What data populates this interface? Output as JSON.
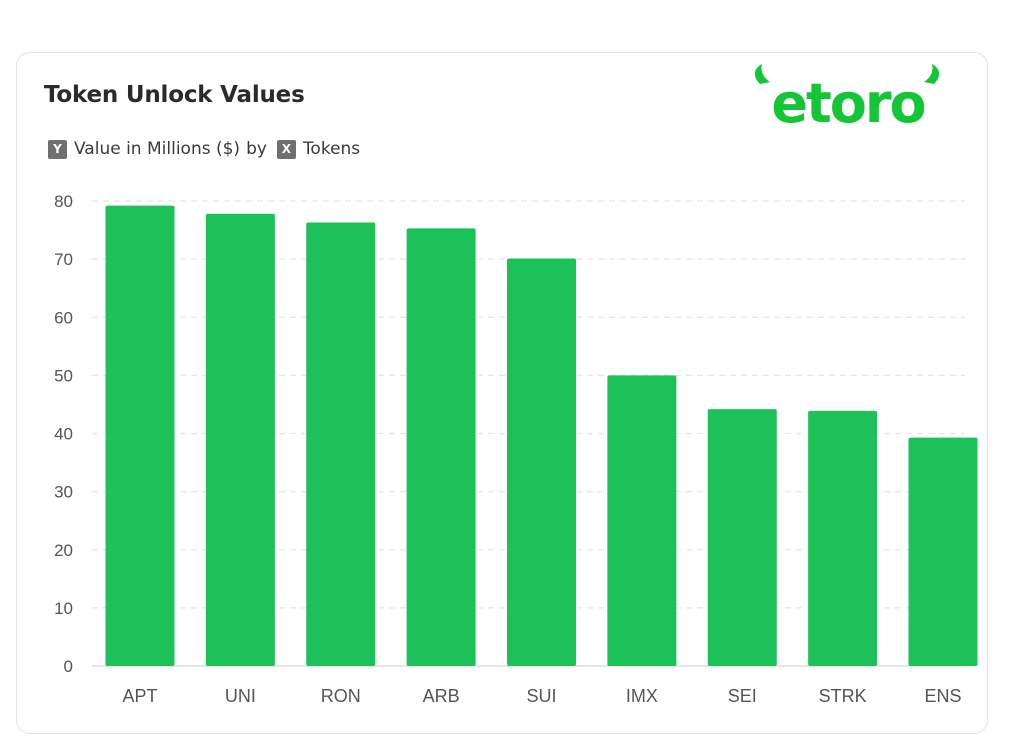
{
  "header": {
    "title": "Token Unlock Values",
    "legend_y_badge": "Y",
    "legend_y_label": "Value in Millions ($)",
    "legend_by": "by",
    "legend_x_badge": "X",
    "legend_x_label": "Tokens"
  },
  "logo": {
    "text": "etoro",
    "color": "#13c636"
  },
  "colors": {
    "bar": "#1dc15a",
    "grid": "#e6e6e6",
    "tick_text": "#555555"
  },
  "chart_data": {
    "type": "bar",
    "title": "Token Unlock Values",
    "ylabel": "Value in Millions ($)",
    "xlabel": "Tokens",
    "categories": [
      "APT",
      "UNI",
      "RON",
      "ARB",
      "SUI",
      "IMX",
      "SEI",
      "STRK",
      "ENS"
    ],
    "values": [
      79.2,
      77.8,
      76.3,
      75.3,
      70.1,
      50.0,
      44.2,
      43.9,
      39.3
    ],
    "ylim": [
      0,
      80
    ],
    "yticks": [
      0,
      10,
      20,
      30,
      40,
      50,
      60,
      70,
      80
    ],
    "grid": true,
    "legend": "top-left"
  }
}
